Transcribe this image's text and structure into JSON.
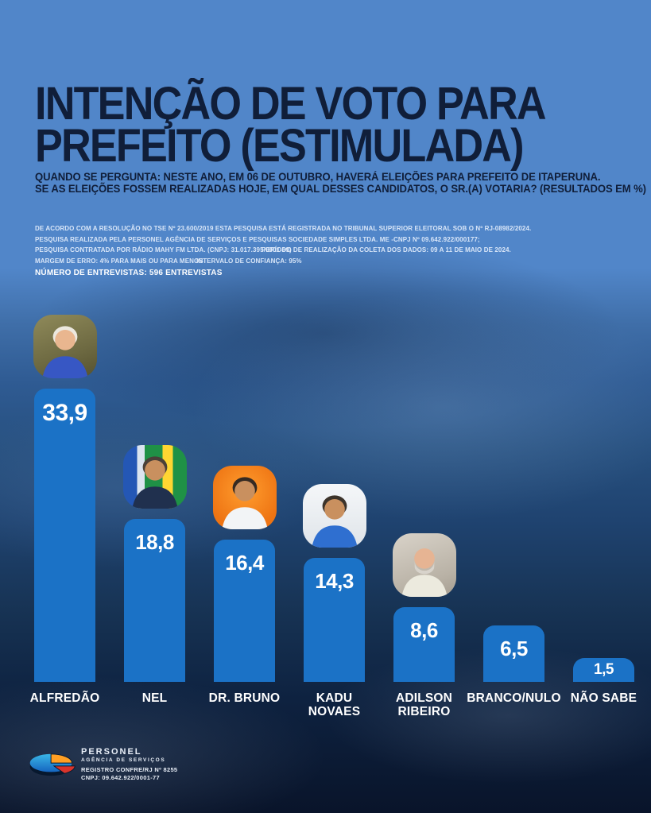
{
  "poster": {
    "title_lines": [
      "INTENÇÃO DE VOTO PARA",
      "PREFEITO (ESTIMULADA)"
    ],
    "subtitle_lines": [
      "QUANDO SE PERGUNTA: NESTE ANO, EM 06 DE OUTUBRO, HAVERÁ ELEIÇÕES PARA PREFEITO DE ITAPERUNA.",
      "SE AS ELEIÇÕES FOSSEM REALIZADAS HOJE, EM QUAL DESSES CANDIDATOS, O SR.(A) VOTARIA? (RESULTADOS EM %)"
    ]
  },
  "methodology": {
    "lines": [
      {
        "col1": "DE ACORDO COM A RESOLUÇÃO NO TSE Nº 23.600/2019 ESTA PESQUISA ESTÁ REGISTRADA NO TRIBUNAL SUPERIOR ELEITORAL SOB O Nº RJ-08982/2024.",
        "col2": ""
      },
      {
        "col1": "PESQUISA REALIZADA PELA PERSONEL AGÊNCIA DE SERVIÇOS E PESQUISAS SOCIEDADE SIMPLES LTDA. ME -CNPJ Nº 09.642.922/000177;",
        "col2": ""
      },
      {
        "col1": "PESQUISA CONTRATADA POR RÁDIO MAHY FM LTDA. (CNPJ: 31.017.395/0001-69)",
        "col2": "PERÍODO DE REALIZAÇÃO DA COLETA DOS DADOS: 09 A 11 DE MAIO DE 2024."
      },
      {
        "col1": "MARGEM DE ERRO: 4% PARA MAIS OU PARA MENOS",
        "col2": "INTERVALO DE CONFIANÇA: 95%"
      }
    ],
    "highlight": "NÚMERO DE ENTREVISTAS: 596 ENTREVISTAS"
  },
  "chart_data": {
    "type": "bar",
    "title": "INTENÇÃO DE VOTO PARA PREFEITO (ESTIMULADA)",
    "unit": "%",
    "ylim": [
      0,
      35
    ],
    "grid": false,
    "legend": false,
    "bar_color": "#1b72c6",
    "categories": [
      "ALFREDÃO",
      "NEL",
      "DR. BRUNO",
      "KADU NOVAES",
      "ADILSON RIBEIRO",
      "BRANCO/NULO",
      "NÃO SABE"
    ],
    "values": [
      33.9,
      18.8,
      16.4,
      14.3,
      8.6,
      6.5,
      1.5
    ],
    "bars": [
      {
        "name_lines": [
          "ALFREDÃO"
        ],
        "value": 33.9,
        "label": "33,9",
        "avatar": {
          "variant": "alfredao",
          "skin": "#e9b68f",
          "hair": "#ece8df",
          "beard": null,
          "shirt": "#3757c4"
        }
      },
      {
        "name_lines": [
          "NEL"
        ],
        "value": 18.8,
        "label": "18,8",
        "avatar": {
          "variant": "nel",
          "skin": "#c9905f",
          "hair": "#4a4038",
          "beard": null,
          "shirt": "#20304e"
        }
      },
      {
        "name_lines": [
          "DR. BRUNO"
        ],
        "value": 16.4,
        "label": "16,4",
        "avatar": {
          "variant": "bruno",
          "skin": "#c9905f",
          "hair": "#352a22",
          "beard": null,
          "shirt": "#f2f4f6"
        }
      },
      {
        "name_lines": [
          "KADU",
          "NOVAES"
        ],
        "value": 14.3,
        "label": "14,3",
        "avatar": {
          "variant": "kadu",
          "skin": "#c9905f",
          "hair": "#3c332a",
          "beard": null,
          "shirt": "#2f6fd0"
        }
      },
      {
        "name_lines": [
          "ADILSON",
          "RIBEIRO"
        ],
        "value": 8.6,
        "label": "8,6",
        "avatar": {
          "variant": "adilson",
          "skin": "#e6b493",
          "hair": null,
          "beard": "#d8d3cb",
          "shirt": "#eceade"
        }
      },
      {
        "name_lines": [
          "BRANCO/NULO"
        ],
        "value": 6.5,
        "label": "6,5",
        "avatar": null
      },
      {
        "name_lines": [
          "NÃO SABE"
        ],
        "value": 1.5,
        "label": "1,5",
        "avatar": null
      }
    ]
  },
  "footer": {
    "brand": "PERSONEL",
    "brand_sub": "AGÊNCIA DE SERVIÇOS",
    "registry": "REGISTRO CONFRE/RJ Nº 8255",
    "cnpj": "CNPJ: 09.642.922/0001-77"
  },
  "colors": {
    "bar": "#1b72c6",
    "title_text": "#101e39",
    "top_background": "#5186c9",
    "value_text": "#ffffff"
  }
}
